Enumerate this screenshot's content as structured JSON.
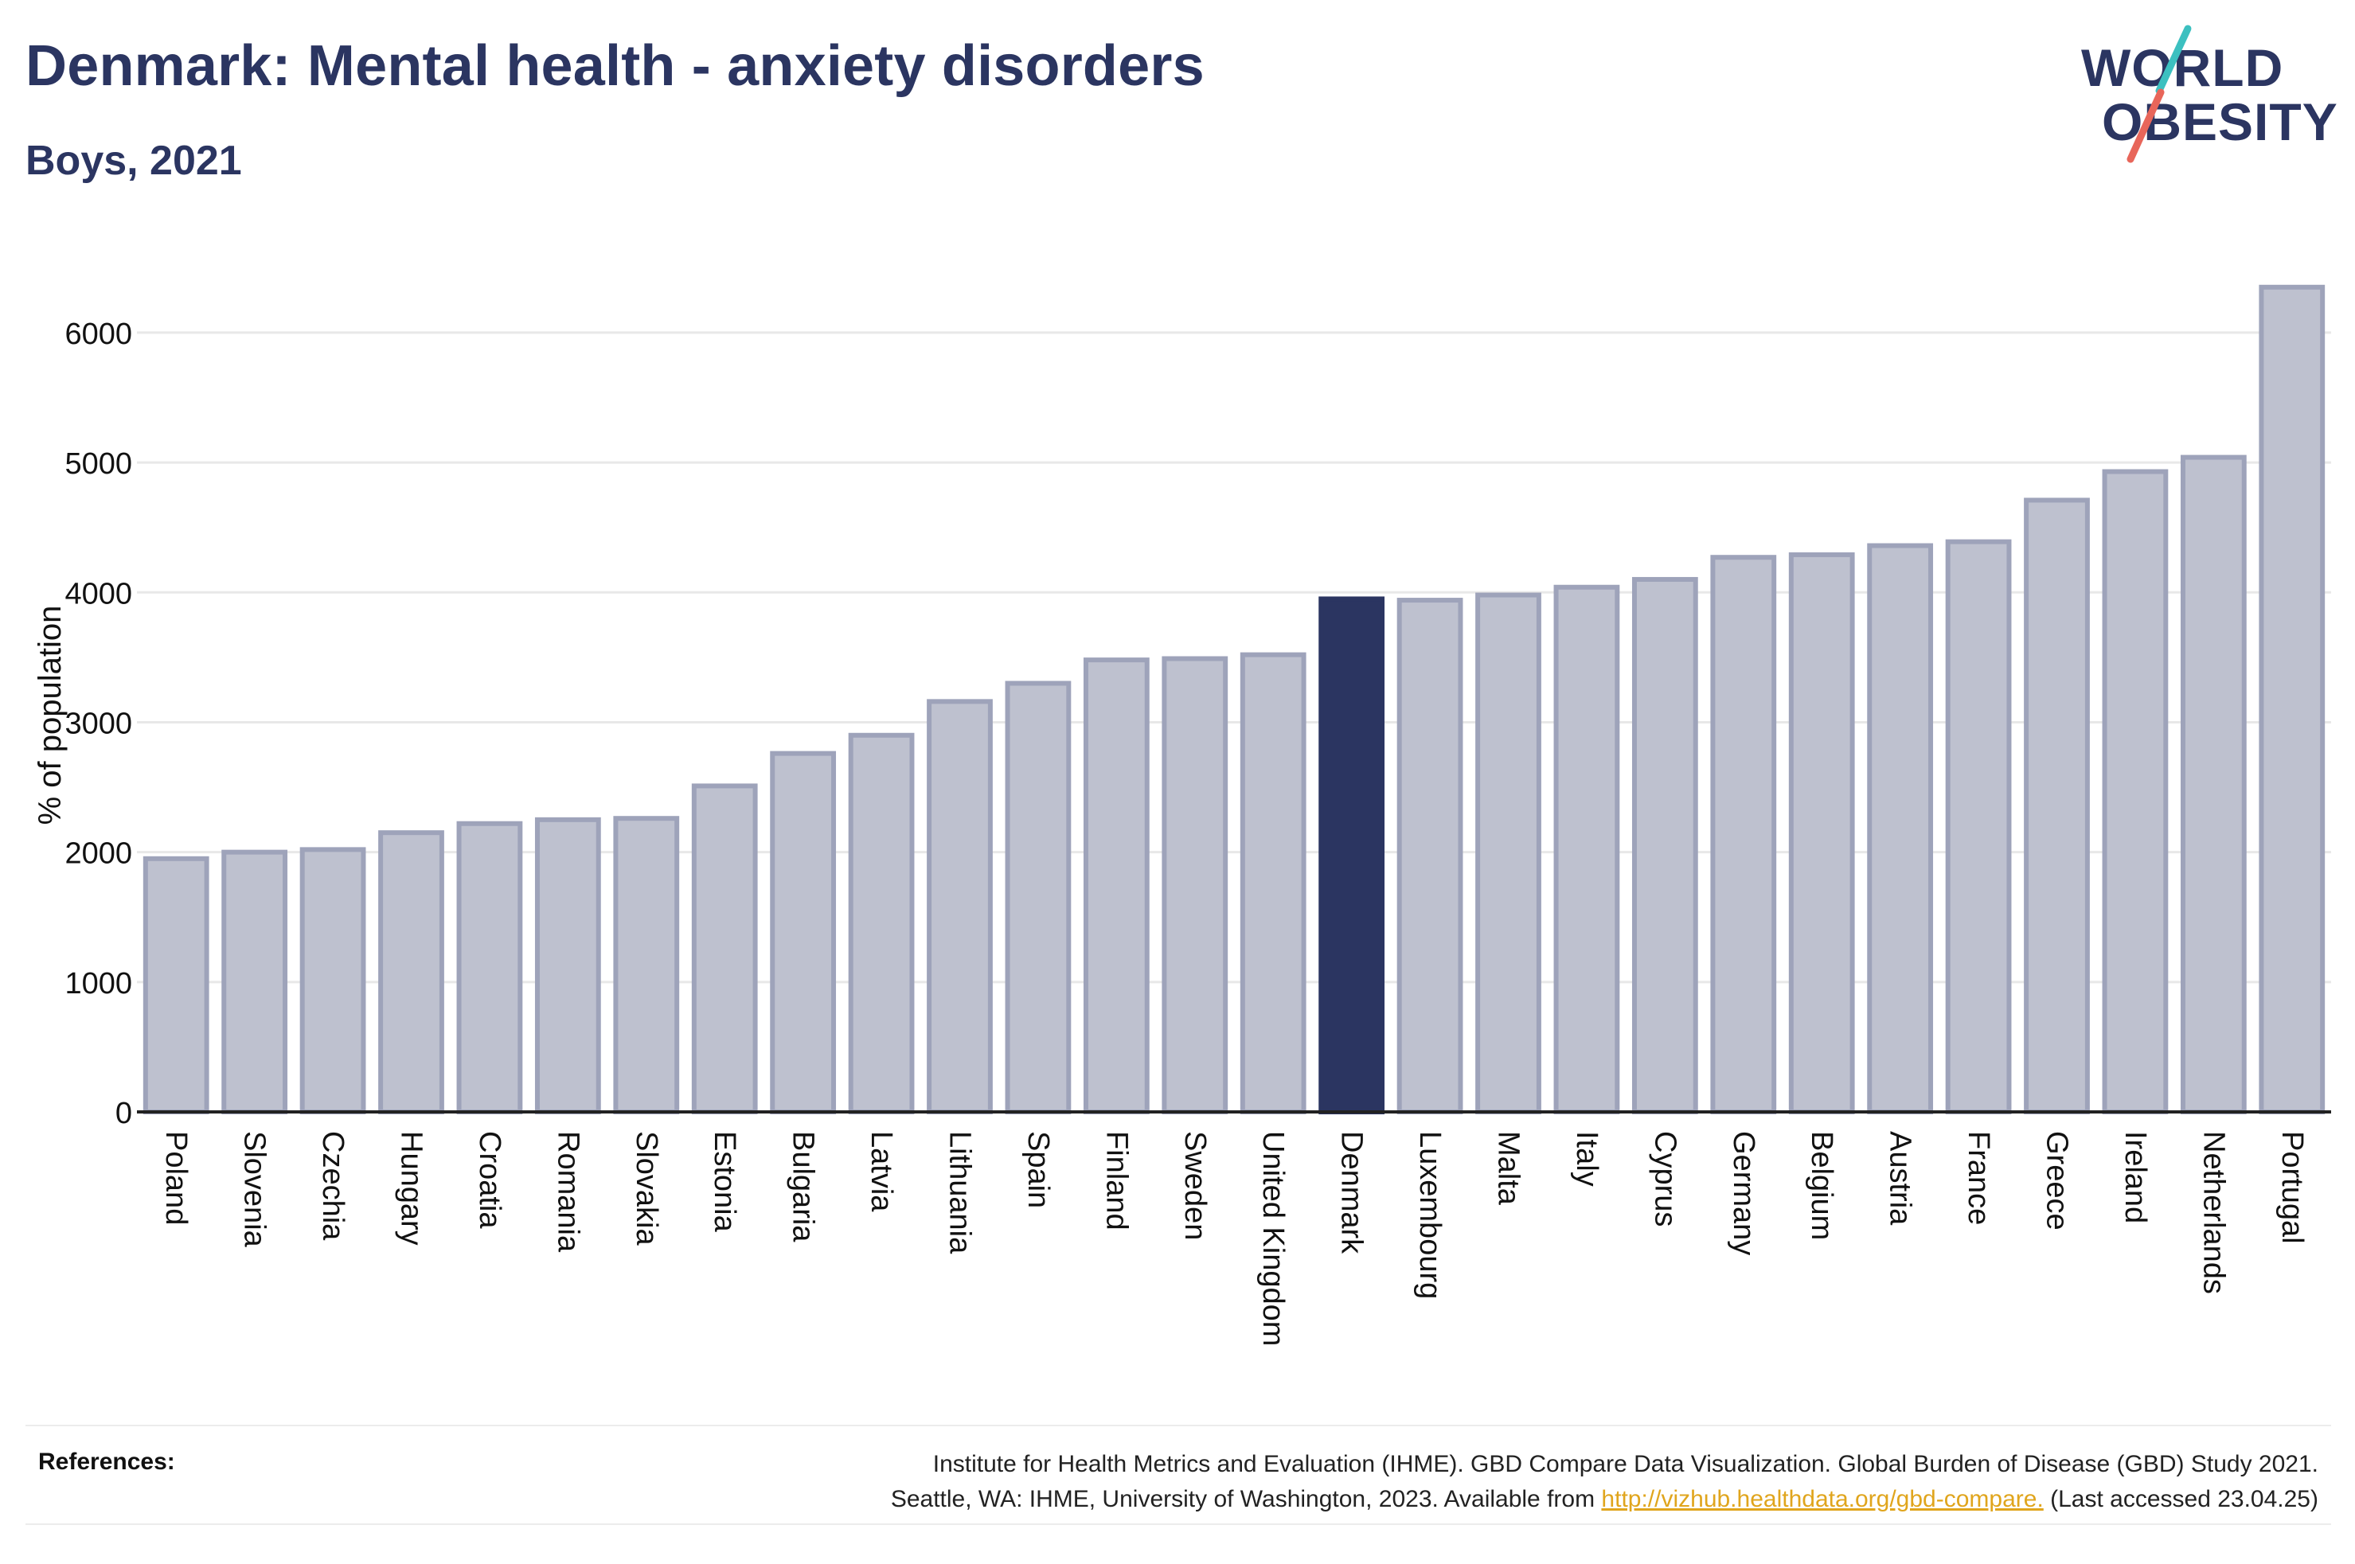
{
  "header": {
    "title": "Denmark: Mental health - anxiety disorders",
    "subtitle": "Boys, 2021"
  },
  "logo": {
    "line1": "WORLD",
    "line2": "OBESITY",
    "accent_teal": "#3cc0c0",
    "accent_red": "#e8665a",
    "text_color": "#2b3561"
  },
  "references": {
    "label": "References:",
    "line1": "Institute for Health Metrics and Evaluation (IHME). GBD Compare Data Visualization. Global Burden of Disease (GBD) Study 2021.",
    "line2_prefix": "Seattle, WA: IHME, University of Washington, 2023. Available from ",
    "link": "http://vizhub.healthdata.org/gbd-compare.",
    "line2_suffix": " (Last accessed 23.04.25)"
  },
  "chart_data": {
    "type": "bar",
    "title": "Denmark: Mental health - anxiety disorders",
    "subtitle": "Boys, 2021",
    "ylabel": "% of population",
    "xlabel": "",
    "ylim": [
      0,
      6600
    ],
    "yticks": [
      0,
      1000,
      2000,
      3000,
      4000,
      5000,
      6000
    ],
    "grid": true,
    "highlight": "Denmark",
    "colors": {
      "highlight": "#2b3561",
      "bar_fill": "#bec1cf",
      "bar_edge": "#9ea3ba",
      "grid": "#e8e8e8",
      "axis": "#222222"
    },
    "categories": [
      "Poland",
      "Slovenia",
      "Czechia",
      "Hungary",
      "Croatia",
      "Romania",
      "Slovakia",
      "Estonia",
      "Bulgaria",
      "Latvia",
      "Lithuania",
      "Spain",
      "Finland",
      "Sweden",
      "United Kingdom",
      "Denmark",
      "Luxembourg",
      "Malta",
      "Italy",
      "Cyprus",
      "Germany",
      "Belgium",
      "Austria",
      "France",
      "Greece",
      "Ireland",
      "Netherlands",
      "Portugal"
    ],
    "values": [
      1950,
      2000,
      2020,
      2150,
      2220,
      2250,
      2260,
      2510,
      2760,
      2900,
      3160,
      3300,
      3480,
      3490,
      3520,
      3950,
      3940,
      3980,
      4040,
      4100,
      4270,
      4290,
      4360,
      4390,
      4710,
      4930,
      5040,
      6350
    ]
  }
}
